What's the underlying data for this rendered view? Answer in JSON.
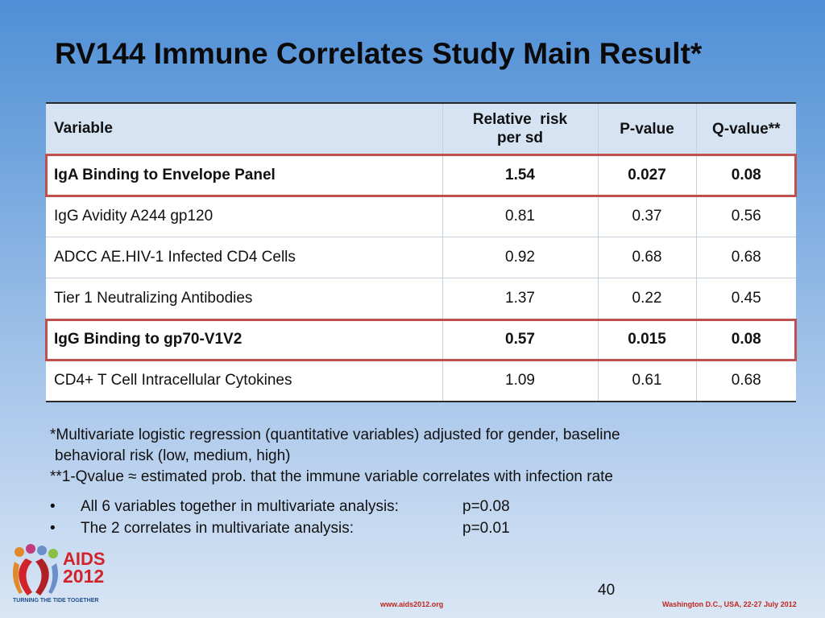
{
  "slide": {
    "title": "RV144 Immune Correlates Study Main Result*",
    "page_number": "40"
  },
  "table": {
    "headers": {
      "variable": "Variable",
      "relative_risk_line1": "Relative  risk",
      "relative_risk_line2": "per sd",
      "p_value": "P-value",
      "q_value": "Q-value**"
    },
    "rows": [
      {
        "variable": "IgA Binding to Envelope Panel",
        "relative_risk": "1.54",
        "p_value": "0.027",
        "q_value": "0.08",
        "highlighted": true
      },
      {
        "variable": "IgG Avidity A244 gp120",
        "relative_risk": "0.81",
        "p_value": "0.37",
        "q_value": "0.56",
        "highlighted": false
      },
      {
        "variable": "ADCC AE.HIV-1 Infected CD4 Cells",
        "relative_risk": "0.92",
        "p_value": "0.68",
        "q_value": "0.68",
        "highlighted": false
      },
      {
        "variable": "Tier 1 Neutralizing Antibodies",
        "relative_risk": "1.37",
        "p_value": "0.22",
        "q_value": "0.45",
        "highlighted": false
      },
      {
        "variable": "IgG Binding to gp70-V1V2",
        "relative_risk": "0.57",
        "p_value": "0.015",
        "q_value": "0.08",
        "highlighted": true
      },
      {
        "variable": "CD4+ T Cell Intracellular Cytokines",
        "relative_risk": "1.09",
        "p_value": "0.61",
        "q_value": "0.68",
        "highlighted": false
      }
    ],
    "highlight_color": "#c0504d"
  },
  "footnotes": {
    "line1": "*Multivariate logistic regression (quantitative variables) adjusted for gender, baseline",
    "line2": "behavioral risk (low, medium, high)",
    "line3": "**1-Qvalue ≈ estimated prob. that the immune variable correlates with infection rate"
  },
  "bullets": [
    {
      "dot": "•",
      "label": "All 6 variables together in multivariate analysis:",
      "value": "p=0.08"
    },
    {
      "dot": "•",
      "label": "The 2 correlates in multivariate analysis:",
      "value": "p=0.01"
    }
  ],
  "logo": {
    "text_aids": "AIDS",
    "text_year": "2012",
    "tagline": "TURNING THE TIDE TOGETHER",
    "icon": "ribbon-people-icon"
  },
  "footer": {
    "url": "www.aids2012.org",
    "event": "Washington D.C., USA, 22-27 July 2012"
  },
  "colors": {
    "background_top": "#4f8fd6",
    "background_bottom": "#d9e6f5",
    "header_fill": "#d6e3f2",
    "brand_red": "#d2232a"
  }
}
